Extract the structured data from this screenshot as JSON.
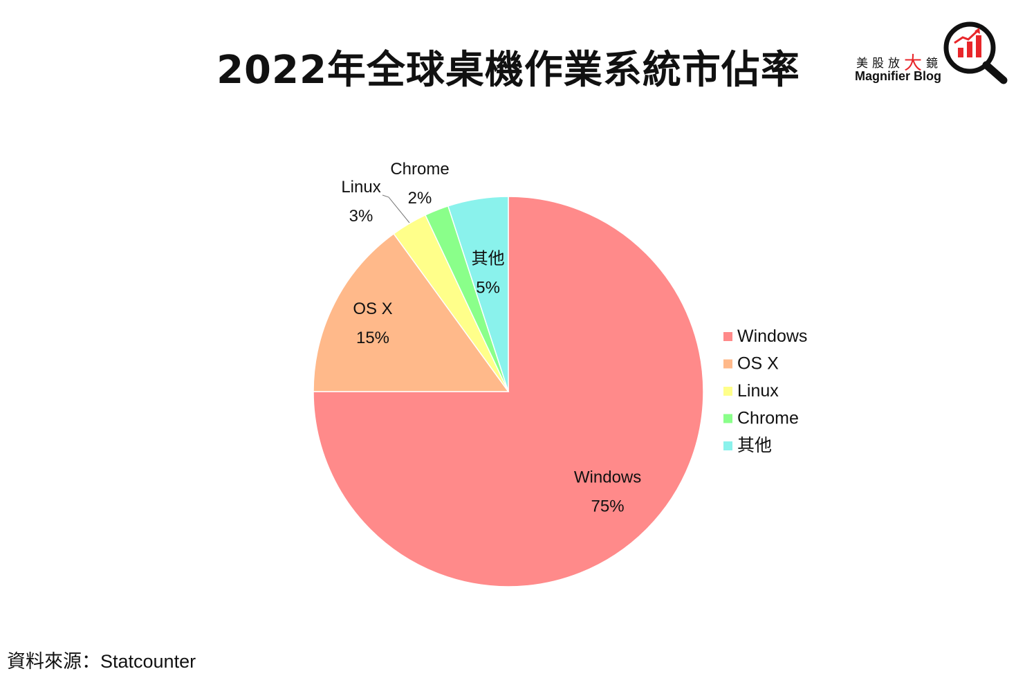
{
  "chart_data": {
    "type": "pie",
    "title": "2022年全球桌機作業系統市佔率",
    "slices": [
      {
        "label": "Windows",
        "value": 75,
        "value_label": "75%",
        "color": "#ff8a8a"
      },
      {
        "label": "OS X",
        "value": 15,
        "value_label": "15%",
        "color": "#ffb98a"
      },
      {
        "label": "Linux",
        "value": 3,
        "value_label": "3%",
        "color": "#ffff8a"
      },
      {
        "label": "Chrome",
        "value": 2,
        "value_label": "2%",
        "color": "#8aff8a"
      },
      {
        "label": "其他",
        "value": 5,
        "value_label": "5%",
        "color": "#8af2ec"
      }
    ],
    "legend_position": "right",
    "start": "12 o'clock, clockwise"
  },
  "logo": {
    "chinese_prefix": "美股放",
    "chinese_accent": "大",
    "chinese_suffix": "鏡",
    "english": "Magnifier Blog"
  },
  "source": "資料來源：Statcounter"
}
